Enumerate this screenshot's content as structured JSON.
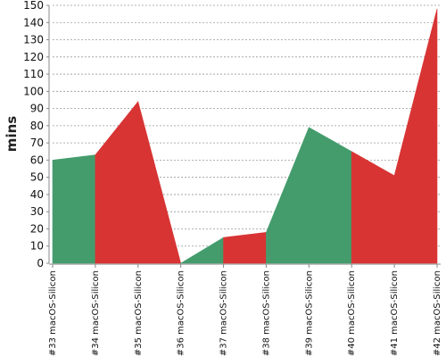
{
  "chart_data": {
    "type": "area",
    "ylabel": "mins",
    "xlabel": "",
    "title": "",
    "ylim": [
      0,
      150
    ],
    "ytick_step": 10,
    "grid": true,
    "categories": [
      "#33 macOS-Silicon",
      "#34 macOS-Silicon",
      "#35 macOS-Silicon",
      "#36 macOS-Silicon",
      "#37 macOS-Silicon",
      "#38 macOS-Silicon",
      "#39 macOS-Silicon",
      "#40 macOS-Silicon",
      "#41 macOS-Silicon",
      "#42 macOS-Silicon"
    ],
    "values": [
      60,
      63,
      94,
      0,
      15,
      18,
      79,
      65,
      51,
      148
    ],
    "status": [
      "pass",
      "pass",
      "fail",
      "fail",
      "pass",
      "fail",
      "pass",
      "pass",
      "fail",
      "fail"
    ],
    "colors": {
      "pass": "#449c6c",
      "fail": "#d83434",
      "grid": "#999999",
      "axis": "#888888"
    }
  }
}
